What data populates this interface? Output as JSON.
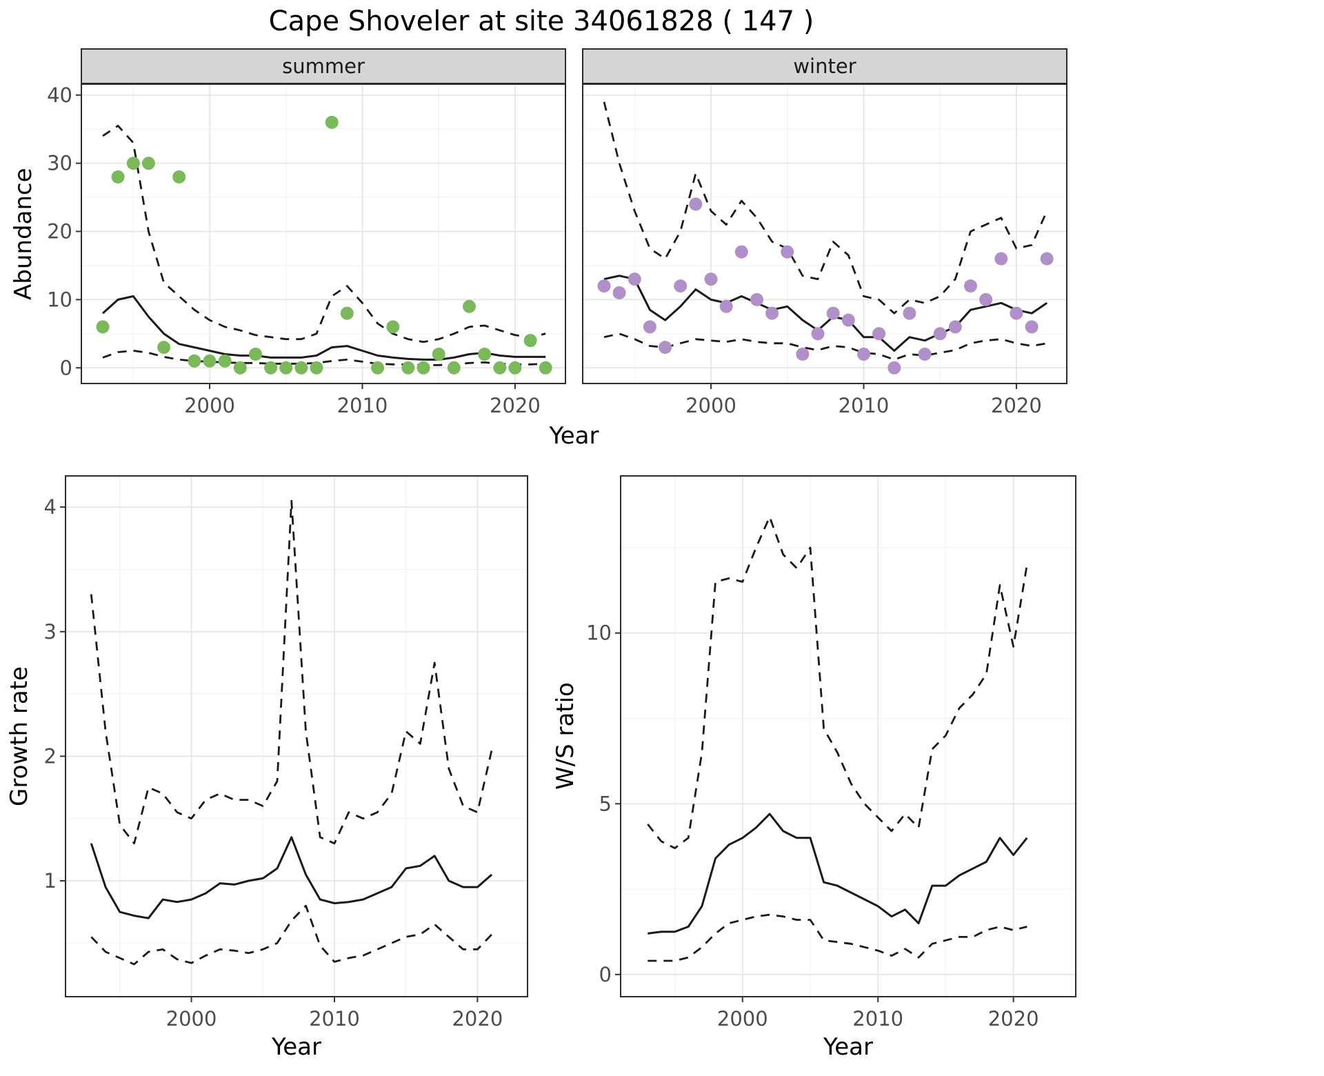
{
  "title": "Cape Shoveler at site 34061828 ( 147 )",
  "axis_labels": {
    "x": "Year",
    "abundance": "Abundance",
    "growth_rate": "Growth rate",
    "ws_ratio": "W/S ratio"
  },
  "colors": {
    "summer_points": "#7bb85a",
    "winter_points": "#b18fc9",
    "line": "#1a1a1a",
    "strip_bg": "#d6d6d6",
    "strip_text": "#1a1a1a",
    "grid_major": "#e4e4e4",
    "grid_minor": "#f2f2f2",
    "panel_border": "#2b2b2b",
    "tick_mark": "#333333",
    "tick_label": "#4d4d4d"
  },
  "chart_data": [
    {
      "id": "abundance-summer",
      "type": "line+scatter",
      "facet": "summer",
      "title": "",
      "xlabel": "Year",
      "ylabel": "Abundance",
      "x": [
        1993,
        1994,
        1995,
        1996,
        1997,
        1998,
        1999,
        2000,
        2001,
        2002,
        2003,
        2004,
        2005,
        2006,
        2007,
        2008,
        2009,
        2010,
        2011,
        2012,
        2013,
        2014,
        2015,
        2016,
        2017,
        2018,
        2019,
        2020,
        2021,
        2022
      ],
      "xlim": [
        1991.6,
        2023.3
      ],
      "ylim": [
        -2.3,
        41.6
      ],
      "xticks": [
        2000,
        2010,
        2020
      ],
      "xminor": [
        1995,
        2005,
        2015
      ],
      "yticks": [
        0,
        10,
        20,
        30,
        40
      ],
      "yminor": [
        5,
        15,
        25,
        35
      ],
      "series": [
        {
          "name": "upper_ci",
          "type": "line",
          "dash": true,
          "values": [
            34,
            35.5,
            33,
            20,
            12.5,
            10.5,
            8.5,
            7,
            6,
            5.5,
            4.8,
            4.5,
            4.2,
            4.2,
            5,
            10.5,
            12,
            9.5,
            6.5,
            5,
            4.2,
            3.8,
            4.2,
            5,
            6,
            6.2,
            5.5,
            4.8,
            4.5,
            5
          ]
        },
        {
          "name": "lower_ci",
          "type": "line",
          "dash": true,
          "values": [
            1.5,
            2.3,
            2.5,
            2.2,
            1.6,
            1.2,
            1,
            0.9,
            0.8,
            0.7,
            0.7,
            0.6,
            0.6,
            0.6,
            0.7,
            1,
            1.2,
            0.9,
            0.6,
            0.5,
            0.5,
            0.4,
            0.4,
            0.5,
            0.7,
            0.8,
            0.6,
            0.5,
            0.5,
            0.6
          ]
        },
        {
          "name": "fit",
          "type": "line",
          "dash": false,
          "values": [
            8,
            10,
            10.5,
            7.5,
            5,
            3.5,
            3,
            2.5,
            2,
            1.8,
            1.8,
            1.5,
            1.5,
            1.5,
            1.8,
            3,
            3.2,
            2.5,
            1.8,
            1.5,
            1.3,
            1.2,
            1.2,
            1.5,
            2,
            2.2,
            1.8,
            1.6,
            1.6,
            1.6
          ]
        },
        {
          "name": "observed",
          "type": "scatter",
          "color_key": "summer_points",
          "values": [
            6,
            28,
            30,
            30,
            3,
            28,
            1,
            1,
            1,
            0,
            2,
            0,
            0,
            0,
            0,
            36,
            8,
            null,
            0,
            6,
            0,
            0,
            2,
            0,
            9,
            2,
            0,
            0,
            4,
            0
          ]
        }
      ]
    },
    {
      "id": "abundance-winter",
      "type": "line+scatter",
      "facet": "winter",
      "title": "",
      "xlabel": "Year",
      "ylabel": "Abundance",
      "x": [
        1993,
        1994,
        1995,
        1996,
        1997,
        1998,
        1999,
        2000,
        2001,
        2002,
        2003,
        2004,
        2005,
        2006,
        2007,
        2008,
        2009,
        2010,
        2011,
        2012,
        2013,
        2014,
        2015,
        2016,
        2017,
        2018,
        2019,
        2020,
        2021,
        2022
      ],
      "xlim": [
        1991.6,
        2023.3
      ],
      "ylim": [
        -2.3,
        41.6
      ],
      "xticks": [
        2000,
        2010,
        2020
      ],
      "xminor": [
        1995,
        2005,
        2015
      ],
      "yticks": [
        0,
        10,
        20,
        30,
        40
      ],
      "yminor": [
        5,
        15,
        25,
        35
      ],
      "series": [
        {
          "name": "upper_ci",
          "type": "line",
          "dash": true,
          "values": [
            39,
            30,
            23,
            17.5,
            16,
            20,
            28.5,
            23,
            21,
            24.5,
            22,
            18.5,
            17.5,
            13.5,
            13,
            18.5,
            16.5,
            10.5,
            10,
            8,
            10,
            9.5,
            10.5,
            13,
            20,
            21,
            22,
            17.5,
            18,
            23
          ]
        },
        {
          "name": "lower_ci",
          "type": "line",
          "dash": true,
          "values": [
            4.5,
            5,
            4.2,
            3.2,
            3,
            3.6,
            4.2,
            4,
            3.8,
            4.2,
            3.8,
            3.6,
            3.6,
            3,
            2.6,
            3.2,
            3,
            2.2,
            2,
            1.2,
            2,
            1.8,
            2.2,
            2.6,
            3.6,
            4,
            4.2,
            3.6,
            3.2,
            3.6
          ]
        },
        {
          "name": "fit",
          "type": "line",
          "dash": false,
          "values": [
            13,
            13.5,
            13,
            8.5,
            7,
            9,
            11.5,
            10,
            9.5,
            10.5,
            9.5,
            8.5,
            9,
            7,
            5.5,
            7.5,
            7,
            4.5,
            4.5,
            2.5,
            4.5,
            4,
            5,
            6,
            8.5,
            9,
            9.5,
            8.5,
            8,
            9.5
          ]
        },
        {
          "name": "observed",
          "type": "scatter",
          "color_key": "winter_points",
          "values": [
            12,
            11,
            13,
            6,
            3,
            12,
            24,
            13,
            9,
            17,
            10,
            8,
            17,
            2,
            5,
            8,
            7,
            2,
            5,
            0,
            8,
            2,
            5,
            6,
            12,
            10,
            16,
            8,
            6,
            16
          ]
        }
      ]
    },
    {
      "id": "growth-rate",
      "type": "line",
      "facet": null,
      "title": "",
      "xlabel": "Year",
      "ylabel": "Growth rate",
      "x": [
        1993,
        1994,
        1995,
        1996,
        1997,
        1998,
        1999,
        2000,
        2001,
        2002,
        2003,
        2004,
        2005,
        2006,
        2007,
        2008,
        2009,
        2010,
        2011,
        2012,
        2013,
        2014,
        2015,
        2016,
        2017,
        2018,
        2019,
        2020,
        2021
      ],
      "xlim": [
        1991.2,
        2023.5
      ],
      "ylim": [
        0.07,
        4.25
      ],
      "xticks": [
        2000,
        2010,
        2020
      ],
      "xminor": [
        1995,
        2005,
        2015
      ],
      "yticks": [
        1,
        2,
        3,
        4
      ],
      "yminor": [
        0.5,
        1.5,
        2.5,
        3.5
      ],
      "series": [
        {
          "name": "upper_ci",
          "type": "line",
          "dash": true,
          "values": [
            3.3,
            2.2,
            1.45,
            1.3,
            1.75,
            1.7,
            1.55,
            1.5,
            1.65,
            1.7,
            1.65,
            1.65,
            1.6,
            1.8,
            4.05,
            2.2,
            1.35,
            1.3,
            1.55,
            1.5,
            1.55,
            1.7,
            2.2,
            2.1,
            2.75,
            1.9,
            1.6,
            1.55,
            2.05
          ]
        },
        {
          "name": "lower_ci",
          "type": "line",
          "dash": true,
          "values": [
            0.55,
            0.43,
            0.38,
            0.33,
            0.43,
            0.45,
            0.37,
            0.34,
            0.4,
            0.45,
            0.44,
            0.42,
            0.45,
            0.5,
            0.68,
            0.8,
            0.48,
            0.35,
            0.38,
            0.4,
            0.45,
            0.5,
            0.55,
            0.57,
            0.65,
            0.55,
            0.45,
            0.45,
            0.57
          ]
        },
        {
          "name": "fit",
          "type": "line",
          "dash": false,
          "values": [
            1.3,
            0.95,
            0.75,
            0.72,
            0.7,
            0.85,
            0.83,
            0.85,
            0.9,
            0.98,
            0.97,
            1.0,
            1.02,
            1.1,
            1.35,
            1.05,
            0.85,
            0.82,
            0.83,
            0.85,
            0.9,
            0.95,
            1.1,
            1.12,
            1.2,
            1.0,
            0.95,
            0.95,
            1.05
          ]
        }
      ]
    },
    {
      "id": "ws-ratio",
      "type": "line",
      "facet": null,
      "title": "",
      "xlabel": "Year",
      "ylabel": "W/S ratio",
      "x": [
        1993,
        1994,
        1995,
        1996,
        1997,
        1998,
        1999,
        2000,
        2001,
        2002,
        2003,
        2004,
        2005,
        2006,
        2007,
        2008,
        2009,
        2010,
        2011,
        2012,
        2013,
        2014,
        2015,
        2016,
        2017,
        2018,
        2019,
        2020,
        2021
      ],
      "xlim": [
        1991.0,
        2024.6
      ],
      "ylim": [
        -0.65,
        14.6
      ],
      "xticks": [
        2000,
        2010,
        2020
      ],
      "xminor": [
        1995,
        2005,
        2015
      ],
      "yticks": [
        0,
        5,
        10
      ],
      "yminor": [
        2.5,
        7.5,
        12.5
      ],
      "series": [
        {
          "name": "upper_ci",
          "type": "line",
          "dash": true,
          "values": [
            4.4,
            3.9,
            3.7,
            4.0,
            6.5,
            11.5,
            11.6,
            11.5,
            12.5,
            13.4,
            12.3,
            11.9,
            12.5,
            7.2,
            6.5,
            5.6,
            5.0,
            4.6,
            4.2,
            4.7,
            4.3,
            6.6,
            7.0,
            7.8,
            8.2,
            8.8,
            11.4,
            9.6,
            12.0
          ]
        },
        {
          "name": "lower_ci",
          "type": "line",
          "dash": true,
          "values": [
            0.4,
            0.4,
            0.4,
            0.5,
            0.8,
            1.2,
            1.5,
            1.6,
            1.7,
            1.75,
            1.7,
            1.6,
            1.6,
            1.0,
            0.95,
            0.9,
            0.8,
            0.7,
            0.55,
            0.75,
            0.5,
            0.9,
            1.0,
            1.1,
            1.1,
            1.3,
            1.4,
            1.3,
            1.4
          ]
        },
        {
          "name": "fit",
          "type": "line",
          "dash": false,
          "values": [
            1.2,
            1.25,
            1.25,
            1.4,
            2.0,
            3.4,
            3.8,
            4.0,
            4.3,
            4.7,
            4.2,
            4.0,
            4.0,
            2.7,
            2.6,
            2.4,
            2.2,
            2.0,
            1.7,
            1.9,
            1.5,
            2.6,
            2.6,
            2.9,
            3.1,
            3.3,
            4.0,
            3.5,
            4.0
          ]
        }
      ]
    }
  ]
}
